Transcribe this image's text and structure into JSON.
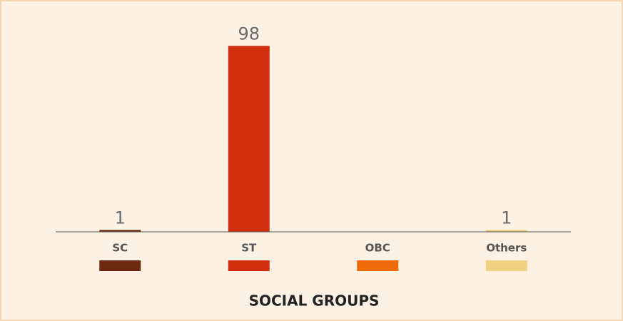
{
  "chart_data": {
    "type": "bar",
    "title": "SOCIAL GROUPS",
    "categories": [
      "SC",
      "ST",
      "OBC",
      "Others"
    ],
    "values": [
      1,
      98,
      null,
      1
    ],
    "colors": [
      "#6b2a10",
      "#d12f0e",
      "#ef6a0b",
      "#f0d182"
    ],
    "ylim": [
      0,
      100
    ]
  }
}
